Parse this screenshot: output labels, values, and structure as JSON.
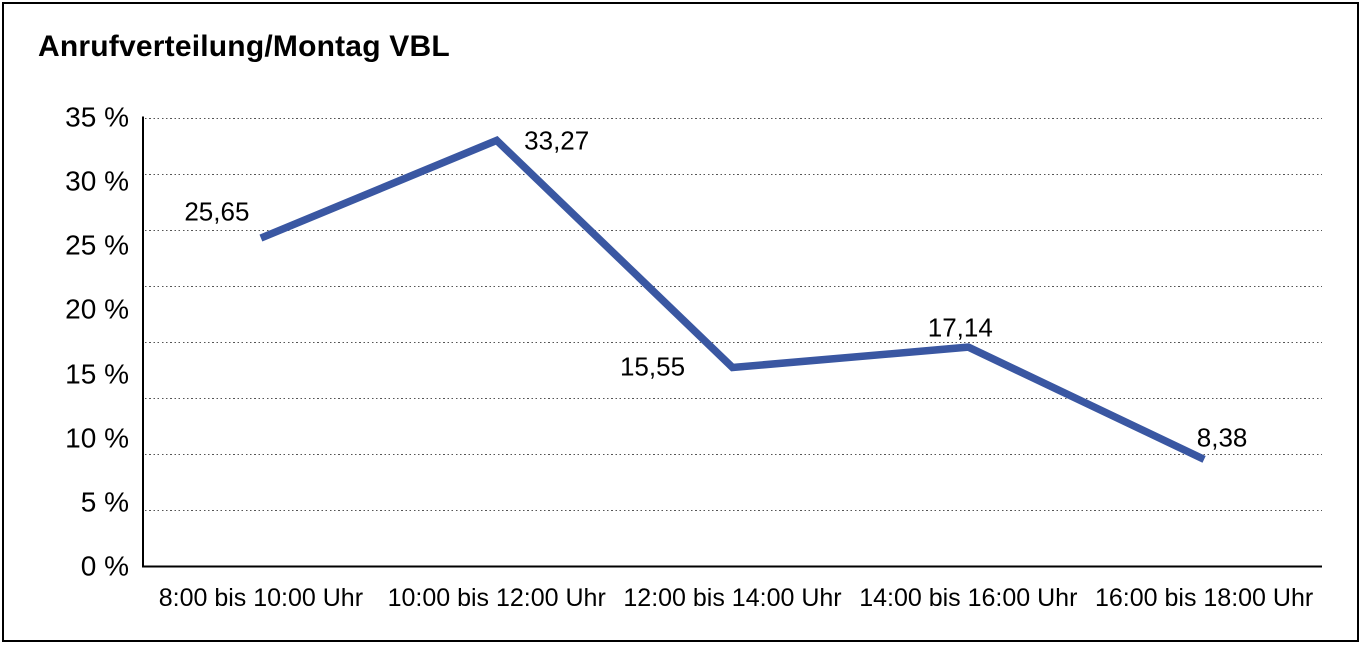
{
  "title": "Anrufverteilung/Montag VBL",
  "chart_data": {
    "type": "line",
    "title": "Anrufverteilung/Montag VBL",
    "categories": [
      "8:00 bis 10:00 Uhr",
      "10:00 bis 12:00 Uhr",
      "12:00 bis 14:00 Uhr",
      "14:00 bis 16:00 Uhr",
      "16:00 bis 18:00 Uhr"
    ],
    "values": [
      25.65,
      33.27,
      15.55,
      17.14,
      8.38
    ],
    "data_labels": [
      "25,65",
      "33,27",
      "15,55",
      "17,14",
      "8,38"
    ],
    "xlabel": "",
    "ylabel": "",
    "ylim": [
      0,
      35
    ],
    "y_tick_values": [
      0,
      5,
      10,
      15,
      20,
      25,
      30,
      35
    ],
    "y_tick_labels": [
      "0 %",
      "5 %",
      "10 %",
      "15 %",
      "20 %",
      "25 %",
      "30 %",
      "35 %"
    ],
    "grid": "horizontal dotted, 9 evenly spaced lines, top line dotted, bottom is solid axis",
    "legend_position": "none",
    "line_color": "#3A57A2",
    "axis_color": "#000000",
    "gridline_color": "#555555",
    "text_color": "#000000"
  }
}
